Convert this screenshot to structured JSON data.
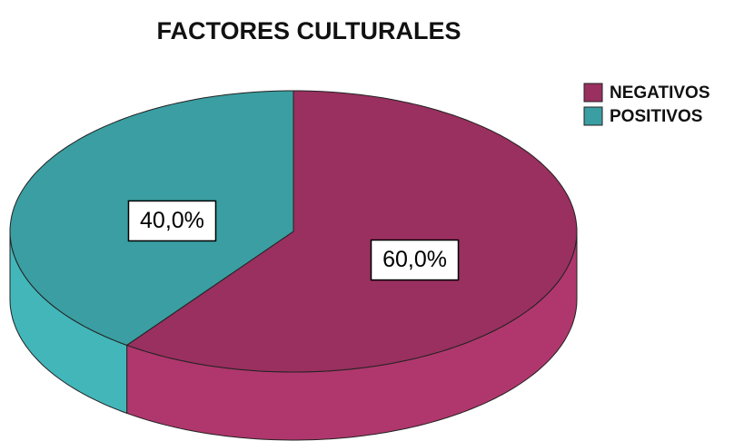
{
  "chart_data": {
    "type": "pie",
    "title": "FACTORES CULTURALES",
    "categories": [
      "NEGATIVOS",
      "POSITIVOS"
    ],
    "values": [
      60,
      40
    ],
    "value_labels": [
      "60,0%",
      "40,0%"
    ],
    "colors": [
      "#99305f",
      "#3a9ea2"
    ],
    "legend": "top-right"
  }
}
